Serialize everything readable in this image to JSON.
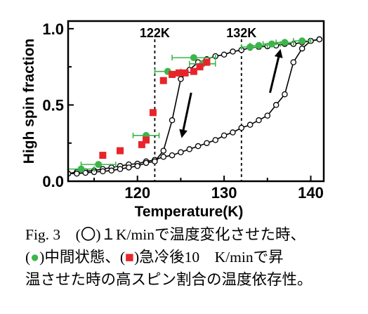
{
  "chart_data": {
    "type": "scatter",
    "title": "",
    "xlabel": "Temperature(K)",
    "ylabel": "High spin fraction",
    "xlim": [
      112,
      141.5
    ],
    "ylim": [
      0,
      1.05
    ],
    "x_ticks": [
      120,
      130,
      140
    ],
    "y_ticks": [
      0.0,
      0.5,
      1.0
    ],
    "y_tick_labels": [
      "0.0",
      "0.5",
      "1.0"
    ],
    "vertical_lines": [
      {
        "x": 122,
        "label": "122K"
      },
      {
        "x": 132,
        "label": "132K"
      }
    ],
    "series": [
      {
        "name": "1 K/min",
        "marker": "open-circle",
        "color": "#000000",
        "branches": [
          {
            "direction": "heating",
            "points": [
              [
                112,
                0.05
              ],
              [
                113,
                0.06
              ],
              [
                114,
                0.065
              ],
              [
                115,
                0.07
              ],
              [
                116,
                0.08
              ],
              [
                117,
                0.09
              ],
              [
                118,
                0.1
              ],
              [
                119,
                0.11
              ],
              [
                120,
                0.115
              ],
              [
                121,
                0.13
              ],
              [
                122,
                0.14
              ],
              [
                123,
                0.16
              ],
              [
                124,
                0.17
              ],
              [
                125,
                0.19
              ],
              [
                126,
                0.21
              ],
              [
                127,
                0.23
              ],
              [
                128,
                0.25
              ],
              [
                129,
                0.27
              ],
              [
                130,
                0.3
              ],
              [
                131,
                0.32
              ],
              [
                132,
                0.35
              ],
              [
                133,
                0.37
              ],
              [
                134,
                0.4
              ],
              [
                135,
                0.43
              ],
              [
                136,
                0.5
              ],
              [
                137,
                0.57
              ],
              [
                138,
                0.78
              ],
              [
                139,
                0.87
              ],
              [
                140,
                0.92
              ],
              [
                141,
                0.93
              ]
            ]
          },
          {
            "direction": "cooling",
            "points": [
              [
                141,
                0.93
              ],
              [
                140,
                0.92
              ],
              [
                139,
                0.91
              ],
              [
                138,
                0.9
              ],
              [
                137,
                0.9
              ],
              [
                136,
                0.89
              ],
              [
                135,
                0.885
              ],
              [
                134,
                0.88
              ],
              [
                133,
                0.875
              ],
              [
                132,
                0.86
              ],
              [
                131,
                0.85
              ],
              [
                130,
                0.83
              ],
              [
                129,
                0.82
              ],
              [
                128,
                0.8
              ],
              [
                127,
                0.78
              ],
              [
                126,
                0.73
              ],
              [
                125,
                0.67
              ],
              [
                124,
                0.4
              ],
              [
                123,
                0.2
              ],
              [
                122,
                0.13
              ],
              [
                121,
                0.12
              ],
              [
                120,
                0.1
              ],
              [
                119,
                0.09
              ],
              [
                118,
                0.08
              ],
              [
                117,
                0.07
              ],
              [
                116,
                0.065
              ],
              [
                115,
                0.06
              ],
              [
                114,
                0.055
              ],
              [
                113,
                0.05
              ],
              [
                112,
                0.05
              ]
            ]
          }
        ]
      },
      {
        "name": "intermediate state",
        "marker": "filled-circle",
        "color": "#3cb54a",
        "points": [
          [
            113.5,
            0.08
          ],
          [
            115.5,
            0.11
          ],
          [
            121,
            0.3
          ],
          [
            123.5,
            0.72
          ],
          [
            126.5,
            0.81
          ],
          [
            127.5,
            0.77
          ],
          [
            133,
            0.88
          ],
          [
            134,
            0.89
          ],
          [
            135.5,
            0.9
          ],
          [
            137,
            0.91
          ],
          [
            139,
            0.92
          ]
        ],
        "xerr": [
          1.5,
          2,
          1.5,
          1.5,
          2.5,
          1.5,
          1,
          1,
          1,
          1,
          1
        ]
      },
      {
        "name": "quenched",
        "marker": "filled-square",
        "color": "#e8242b",
        "points": [
          [
            116,
            0.17
          ],
          [
            118,
            0.2
          ],
          [
            120.5,
            0.24
          ],
          [
            121,
            0.27
          ],
          [
            121.8,
            0.45
          ],
          [
            123,
            0.66
          ],
          [
            124,
            0.7
          ],
          [
            124.8,
            0.71
          ],
          [
            125.5,
            0.71
          ],
          [
            126.5,
            0.72
          ],
          [
            127.2,
            0.75
          ],
          [
            128,
            0.78
          ]
        ]
      }
    ]
  },
  "caption": {
    "line1_prefix": "Fig. 3　(",
    "line1_circle": "〇",
    "line1_suffix": ")１K/minで温度変化させた時、",
    "line2_open": "(",
    "line2_green": "●",
    "line2_mid": ")中間状態、(",
    "line2_red": "■",
    "line2_suffix": ")急冷後10　K/minで昇",
    "line3": "温させた時の高スピン割合の温度依存性。"
  },
  "colors": {
    "green": "#3cb54a",
    "red": "#e8242b",
    "black": "#000000"
  }
}
